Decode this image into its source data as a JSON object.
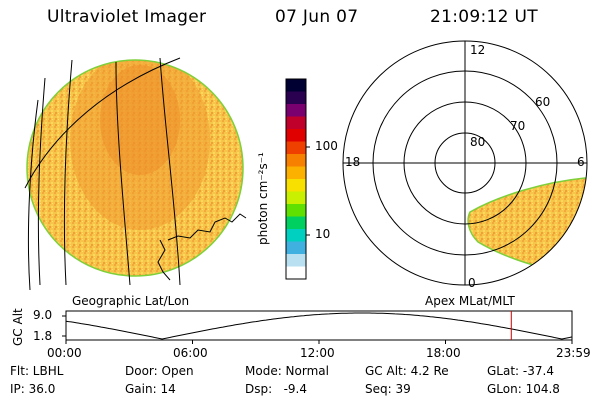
{
  "header": {
    "title": "Ultraviolet Imager",
    "date": "07 Jun 07",
    "time": "21:09:12 UT"
  },
  "colorbar": {
    "unit_label": "photon cm⁻²s⁻¹",
    "tick_100": "100",
    "tick_10": "10",
    "colors": [
      "#000033",
      "#2a0050",
      "#7a0070",
      "#c0002a",
      "#e00000",
      "#f04000",
      "#f88000",
      "#fcb000",
      "#f8e000",
      "#c8f000",
      "#60e000",
      "#00d060",
      "#00d0c0",
      "#40b0e0",
      "#b8e0f0",
      "#ffffff"
    ]
  },
  "left_panel": {
    "caption": "Geographic Lat/Lon",
    "fill": "#f7c64a"
  },
  "polar_panel": {
    "caption": "Apex MLat/MLT",
    "lat_labels": [
      "80",
      "70",
      "60"
    ],
    "mlt_labels": {
      "top": "12",
      "left": "18",
      "right": "6",
      "bottom": "0"
    }
  },
  "altitude_plot": {
    "axis_label": "GC Alt",
    "ymax_label": "9.0",
    "ymin_label": "1.8",
    "x_tick_labels": [
      "00:00",
      "06:00",
      "12:00",
      "18:00",
      "23:59"
    ],
    "current_time_fraction": 0.88,
    "marker_color": "#cc0000"
  },
  "info": {
    "filter": "Flt: LBHL",
    "ip": "IP: 36.0",
    "door": "Door: Open",
    "gain": "Gain: 14",
    "mode": "Mode: Normal",
    "dsp": "Dsp:   -9.4",
    "gc_alt": "GC Alt: 4.2 Re",
    "seq": "Seq: 39",
    "glat": "GLat: -37.4",
    "glon": "GLon: 104.8"
  }
}
